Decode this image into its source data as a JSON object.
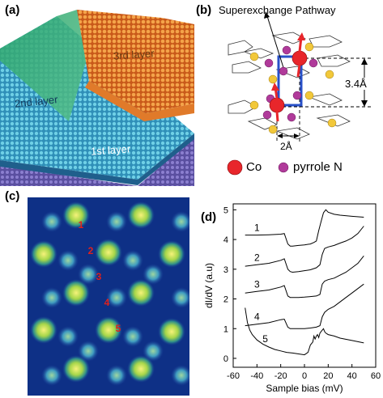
{
  "panels": {
    "a": {
      "label": "(a)",
      "layers": [
        "3rd layer",
        "2nd layer",
        "1st layer"
      ]
    },
    "b": {
      "label": "(b)",
      "title": "Superexchange Pathway",
      "distance_vertical": "3.4Å",
      "distance_horizontal": "2Å",
      "legend": [
        {
          "name": "Co",
          "color": "#e8262b"
        },
        {
          "name": "pyrrole N",
          "color": "#b03a9a"
        }
      ],
      "carbon_color": "#f2c83a"
    },
    "c": {
      "label": "(c)",
      "markers": [
        "1",
        "2",
        "3",
        "4",
        "5"
      ],
      "marker_color": "#e0201c"
    },
    "d": {
      "label": "(d)"
    }
  },
  "chart_data": {
    "type": "line",
    "xlabel": "Sample bias (mV)",
    "ylabel": "dI/dV (a.u)",
    "xlim": [
      -60,
      60
    ],
    "ylim": [
      -0.3,
      5.2
    ],
    "xticks": [
      -60,
      -40,
      -20,
      0,
      20,
      40,
      60
    ],
    "yticks": [
      0,
      1,
      2,
      3,
      4,
      5
    ],
    "grid": false,
    "series": [
      {
        "name": "1",
        "x": [
          -50,
          -40,
          -30,
          -20,
          -17,
          -14,
          -12,
          -10,
          -5,
          0,
          5,
          8,
          10,
          12,
          14,
          15,
          16,
          18,
          20,
          25,
          30,
          40,
          50
        ],
        "y": [
          4.15,
          4.15,
          4.16,
          4.18,
          4.2,
          3.85,
          3.78,
          3.78,
          3.8,
          3.82,
          3.85,
          3.9,
          3.95,
          4.3,
          4.6,
          4.75,
          4.9,
          5.0,
          4.92,
          4.85,
          4.82,
          4.78,
          4.75
        ]
      },
      {
        "name": "2",
        "x": [
          -50,
          -40,
          -30,
          -20,
          -17,
          -14,
          -12,
          -10,
          -5,
          0,
          5,
          10,
          13,
          15,
          17,
          20,
          25,
          30,
          35,
          40,
          45,
          50
        ],
        "y": [
          3.1,
          3.15,
          3.2,
          3.3,
          3.35,
          3.0,
          2.92,
          2.9,
          2.92,
          2.95,
          2.98,
          3.05,
          3.15,
          3.5,
          3.7,
          3.75,
          3.8,
          3.88,
          3.95,
          4.05,
          4.2,
          4.45
        ]
      },
      {
        "name": "3",
        "x": [
          -50,
          -40,
          -30,
          -20,
          -17,
          -14,
          -12,
          -10,
          -5,
          0,
          5,
          10,
          13,
          15,
          17,
          20,
          25,
          30,
          35,
          40,
          45,
          50
        ],
        "y": [
          2.2,
          2.25,
          2.3,
          2.4,
          2.45,
          2.1,
          2.05,
          2.05,
          2.05,
          2.06,
          2.08,
          2.1,
          2.15,
          2.5,
          2.6,
          2.65,
          2.7,
          2.8,
          2.9,
          3.05,
          3.2,
          3.45
        ]
      },
      {
        "name": "4",
        "x": [
          -50,
          -40,
          -30,
          -20,
          -17,
          -14,
          -12,
          -10,
          -5,
          0,
          5,
          10,
          13,
          15,
          17,
          20,
          25,
          30,
          35,
          40,
          45,
          50
        ],
        "y": [
          1.1,
          1.15,
          1.2,
          1.3,
          1.32,
          1.05,
          1.0,
          1.0,
          1.0,
          1.0,
          1.02,
          1.05,
          1.1,
          1.4,
          1.55,
          1.65,
          1.75,
          1.9,
          2.05,
          2.2,
          2.35,
          2.5
        ]
      },
      {
        "name": "5",
        "x": [
          -50,
          -48,
          -46,
          -44,
          -40,
          -35,
          -30,
          -25,
          -20,
          -15,
          -10,
          -5,
          0,
          3,
          5,
          7,
          8,
          9,
          10,
          11,
          12,
          13,
          14,
          15,
          16,
          17,
          18,
          20,
          25,
          30,
          40,
          50
        ],
        "y": [
          1.7,
          1.2,
          0.95,
          0.8,
          0.62,
          0.48,
          0.38,
          0.3,
          0.25,
          0.2,
          0.18,
          0.15,
          0.12,
          0.2,
          0.45,
          0.55,
          0.75,
          0.65,
          0.75,
          0.8,
          0.7,
          0.85,
          0.9,
          0.95,
          1.0,
          0.9,
          0.85,
          0.8,
          0.75,
          0.68,
          0.6,
          0.52
        ]
      }
    ]
  }
}
